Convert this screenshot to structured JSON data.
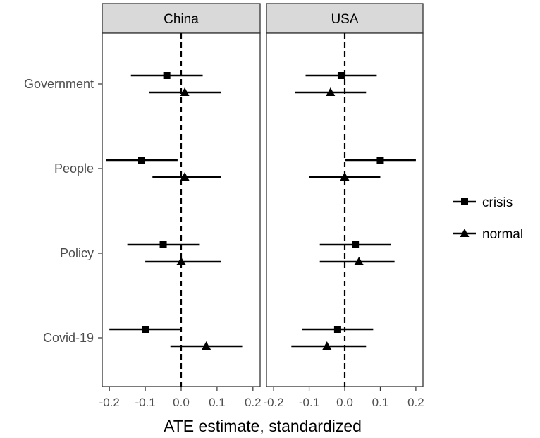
{
  "chart_data": {
    "type": "scatter",
    "subtype": "dot-and-whisker",
    "title": "",
    "xlabel": "ATE estimate, standardized",
    "ylabel": "",
    "xlim": [
      -0.22,
      0.22
    ],
    "x_ticks": [
      -0.2,
      -0.1,
      0.0,
      0.1,
      0.2
    ],
    "x_tick_labels": [
      "-0.2",
      "-0.1",
      "0.0",
      "0.1",
      "0.2"
    ],
    "reference_line": 0,
    "grid": false,
    "legend_position": "right",
    "categories": [
      "Government",
      "People",
      "Policy",
      "Covid-19"
    ],
    "series": [
      {
        "name": "crisis",
        "marker": "square"
      },
      {
        "name": "normal",
        "marker": "triangle"
      }
    ],
    "panels": [
      {
        "label": "China",
        "points": {
          "crisis": [
            {
              "category": "Government",
              "estimate": -0.04,
              "low": -0.14,
              "high": 0.06
            },
            {
              "category": "People",
              "estimate": -0.11,
              "low": -0.21,
              "high": -0.01
            },
            {
              "category": "Policy",
              "estimate": -0.05,
              "low": -0.15,
              "high": 0.05
            },
            {
              "category": "Covid-19",
              "estimate": -0.1,
              "low": -0.2,
              "high": 0.0
            }
          ],
          "normal": [
            {
              "category": "Government",
              "estimate": 0.01,
              "low": -0.09,
              "high": 0.11
            },
            {
              "category": "People",
              "estimate": 0.01,
              "low": -0.08,
              "high": 0.11
            },
            {
              "category": "Policy",
              "estimate": 0.0,
              "low": -0.1,
              "high": 0.11
            },
            {
              "category": "Covid-19",
              "estimate": 0.07,
              "low": -0.03,
              "high": 0.17
            }
          ]
        }
      },
      {
        "label": "USA",
        "points": {
          "crisis": [
            {
              "category": "Government",
              "estimate": -0.01,
              "low": -0.11,
              "high": 0.09
            },
            {
              "category": "People",
              "estimate": 0.1,
              "low": 0.0,
              "high": 0.2
            },
            {
              "category": "Policy",
              "estimate": 0.03,
              "low": -0.07,
              "high": 0.13
            },
            {
              "category": "Covid-19",
              "estimate": -0.02,
              "low": -0.12,
              "high": 0.08
            }
          ],
          "normal": [
            {
              "category": "Government",
              "estimate": -0.04,
              "low": -0.14,
              "high": 0.06
            },
            {
              "category": "People",
              "estimate": 0.0,
              "low": -0.1,
              "high": 0.1
            },
            {
              "category": "Policy",
              "estimate": 0.04,
              "low": -0.07,
              "high": 0.14
            },
            {
              "category": "Covid-19",
              "estimate": -0.05,
              "low": -0.15,
              "high": 0.06
            }
          ]
        }
      }
    ]
  },
  "colors": {
    "strip_fill": "#d9d9d9",
    "panel_border": "#333333",
    "marks": "#000000",
    "axis_text": "#4d4d4d",
    "title_text": "#000000"
  }
}
